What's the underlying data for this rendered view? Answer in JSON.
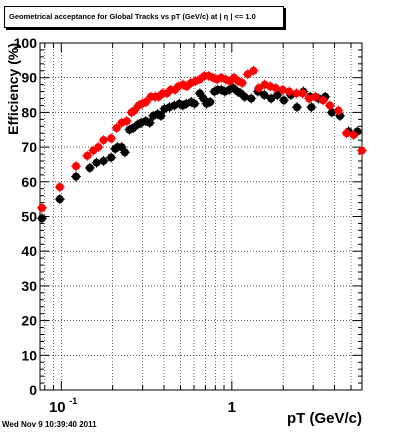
{
  "title": "Geometrical acceptance for Global Tracks vs pT (GeV/c) at | η | <= 1.0",
  "timestamp": "Wed Nov  9 10:39:40 2011",
  "chart_data": {
    "type": "scatter",
    "title": "Geometrical acceptance for Global Tracks vs pT (GeV/c) at | η | <= 1.0",
    "xlabel": "pT (GeV/c)",
    "ylabel": "Efficiency (%)",
    "x_scale": "log",
    "xlim": [
      0.075,
      5.8
    ],
    "ylim": [
      0,
      100
    ],
    "grid": true,
    "x_tick_labels": [
      {
        "value": 0.1,
        "base": "10",
        "exp": "-1"
      },
      {
        "value": 1,
        "base": "1",
        "exp": ""
      }
    ],
    "y_ticks": [
      0,
      10,
      20,
      30,
      40,
      50,
      60,
      70,
      80,
      90,
      100
    ],
    "series": [
      {
        "color": "#000000",
        "points": [
          [
            0.077,
            49.5
          ],
          [
            0.098,
            55.0
          ],
          [
            0.122,
            61.5
          ],
          [
            0.147,
            64.0
          ],
          [
            0.161,
            65.5
          ],
          [
            0.177,
            66.0
          ],
          [
            0.196,
            67.0
          ],
          [
            0.207,
            69.5
          ],
          [
            0.214,
            70.0
          ],
          [
            0.226,
            70.0
          ],
          [
            0.236,
            68.5
          ],
          [
            0.251,
            75.0
          ],
          [
            0.264,
            75.5
          ],
          [
            0.281,
            76.5
          ],
          [
            0.294,
            77.0
          ],
          [
            0.313,
            77.5
          ],
          [
            0.33,
            77.0
          ],
          [
            0.346,
            79.0
          ],
          [
            0.367,
            79.5
          ],
          [
            0.384,
            79.0
          ],
          [
            0.403,
            81.0
          ],
          [
            0.431,
            81.5
          ],
          [
            0.46,
            82.0
          ],
          [
            0.492,
            82.5
          ],
          [
            0.516,
            82.0
          ],
          [
            0.541,
            82.5
          ],
          [
            0.578,
            83.0
          ],
          [
            0.605,
            82.5
          ],
          [
            0.649,
            85.5
          ],
          [
            0.682,
            84.0
          ],
          [
            0.711,
            82.5
          ],
          [
            0.746,
            83.0
          ],
          [
            0.79,
            86.0
          ],
          [
            0.828,
            86.5
          ],
          [
            0.867,
            86.5
          ],
          [
            0.91,
            86.0
          ],
          [
            0.965,
            86.5
          ],
          [
            1.02,
            87.0
          ],
          [
            1.08,
            86.0
          ],
          [
            1.13,
            85.5
          ],
          [
            1.19,
            84.5
          ],
          [
            1.3,
            84.0
          ],
          [
            1.42,
            86.0
          ],
          [
            1.55,
            85.0
          ],
          [
            1.7,
            84.0
          ],
          [
            1.85,
            85.0
          ],
          [
            2.02,
            83.5
          ],
          [
            2.22,
            85.0
          ],
          [
            2.41,
            81.5
          ],
          [
            2.63,
            86.0
          ],
          [
            2.88,
            84.5
          ],
          [
            2.93,
            81.5
          ],
          [
            3.23,
            84.0
          ],
          [
            3.53,
            84.5
          ],
          [
            3.86,
            80.0
          ],
          [
            4.31,
            79.0
          ],
          [
            4.84,
            74.5
          ],
          [
            5.45,
            74.5
          ]
        ]
      },
      {
        "color": "#ff0000",
        "points": [
          [
            0.077,
            52.5
          ],
          [
            0.098,
            58.5
          ],
          [
            0.122,
            64.5
          ],
          [
            0.142,
            67.5
          ],
          [
            0.154,
            69.0
          ],
          [
            0.165,
            70.0
          ],
          [
            0.177,
            72.0
          ],
          [
            0.196,
            72.5
          ],
          [
            0.211,
            75.5
          ],
          [
            0.226,
            77.0
          ],
          [
            0.242,
            77.5
          ],
          [
            0.258,
            80.0
          ],
          [
            0.268,
            80.5
          ],
          [
            0.284,
            82.0
          ],
          [
            0.298,
            82.5
          ],
          [
            0.314,
            83.0
          ],
          [
            0.335,
            84.5
          ],
          [
            0.355,
            84.5
          ],
          [
            0.372,
            84.5
          ],
          [
            0.393,
            85.5
          ],
          [
            0.416,
            85.5
          ],
          [
            0.438,
            86.5
          ],
          [
            0.464,
            86.5
          ],
          [
            0.486,
            87.5
          ],
          [
            0.517,
            88.0
          ],
          [
            0.544,
            87.5
          ],
          [
            0.576,
            88.5
          ],
          [
            0.613,
            89.0
          ],
          [
            0.649,
            89.5
          ],
          [
            0.69,
            90.5
          ],
          [
            0.732,
            90.5
          ],
          [
            0.775,
            90.0
          ],
          [
            0.819,
            89.5
          ],
          [
            0.867,
            90.0
          ],
          [
            0.92,
            89.5
          ],
          [
            0.971,
            89.0
          ],
          [
            1.03,
            90.0
          ],
          [
            1.09,
            89.0
          ],
          [
            1.15,
            88.5
          ],
          [
            1.24,
            91.0
          ],
          [
            1.34,
            92.0
          ],
          [
            1.44,
            87.0
          ],
          [
            1.56,
            88.0
          ],
          [
            1.68,
            87.5
          ],
          [
            1.81,
            87.0
          ],
          [
            1.99,
            86.5
          ],
          [
            2.17,
            86.0
          ],
          [
            2.39,
            85.5
          ],
          [
            2.6,
            85.5
          ],
          [
            2.84,
            84.0
          ],
          [
            3.09,
            84.5
          ],
          [
            3.43,
            83.5
          ],
          [
            3.76,
            82.0
          ],
          [
            4.22,
            80.5
          ],
          [
            4.71,
            74.0
          ],
          [
            5.18,
            73.5
          ],
          [
            5.79,
            69.0
          ]
        ]
      }
    ]
  },
  "icons": {
    "stat-box": "title-box"
  }
}
